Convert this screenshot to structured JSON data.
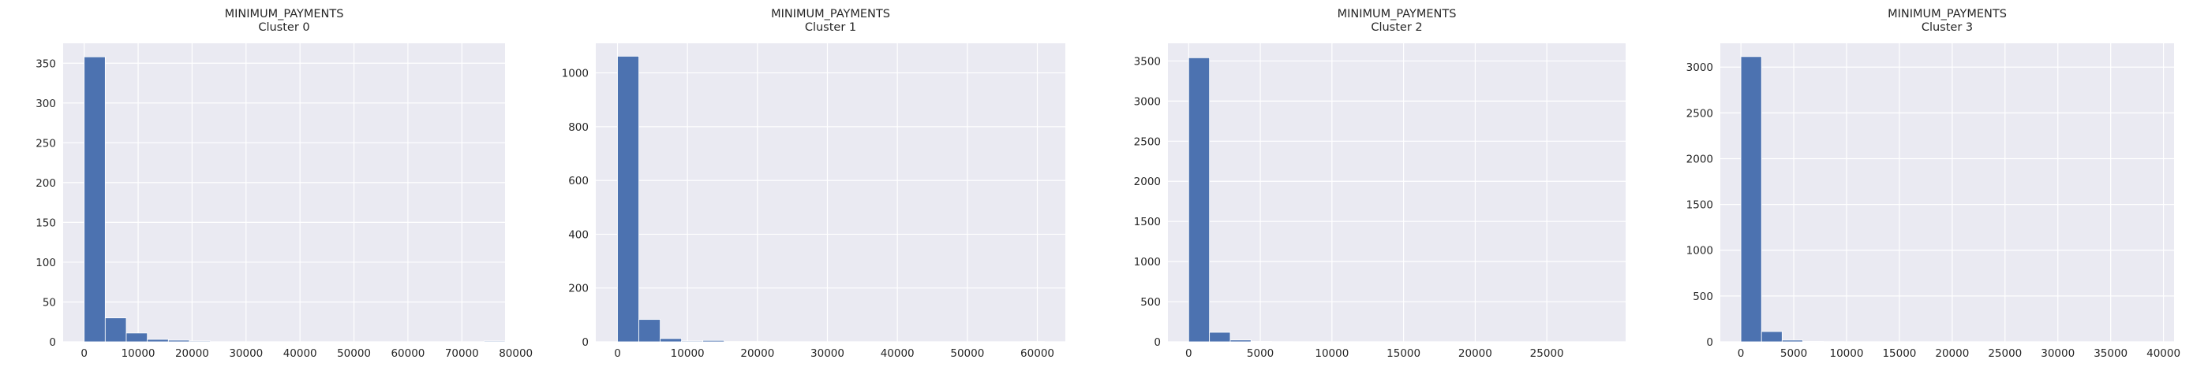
{
  "colors": {
    "background": "#eaeaf2",
    "bar": "#4c72b0",
    "grid": "#ffffff",
    "text": "#262626",
    "page": "#ffffff"
  },
  "chart_data": [
    {
      "type": "bar",
      "title": "MINIMUM_PAYMENTS\nCluster 0",
      "xlabel": "",
      "ylabel": "",
      "grid": true,
      "xlim": [
        -3900,
        78000
      ],
      "ylim": [
        0,
        375
      ],
      "xticks": [
        0,
        10000,
        20000,
        30000,
        40000,
        50000,
        60000,
        70000,
        80000
      ],
      "xtick_labels": [
        "0",
        "10000",
        "20000",
        "30000",
        "40000",
        "50000",
        "60000",
        "70000",
        "80000"
      ],
      "yticks": [
        0,
        50,
        100,
        150,
        200,
        250,
        300,
        350
      ],
      "ytick_labels": [
        "0",
        "50",
        "100",
        "150",
        "200",
        "250",
        "300",
        "350"
      ],
      "bin_edges": [
        0,
        3900,
        7800,
        11700,
        15600,
        19500,
        23400,
        27300,
        31200,
        35100,
        39000,
        42900,
        46800,
        50700,
        54600,
        58500,
        62400,
        66300,
        70200,
        74100,
        78000
      ],
      "values": [
        358,
        30,
        11,
        3,
        2,
        1,
        0,
        0,
        0,
        0,
        0,
        0,
        0,
        0,
        0,
        0,
        0,
        0,
        0,
        1
      ]
    },
    {
      "type": "bar",
      "title": "MINIMUM_PAYMENTS\nCluster 1",
      "xlabel": "",
      "ylabel": "",
      "grid": true,
      "xlim": [
        -3100,
        64000
      ],
      "ylim": [
        0,
        1110
      ],
      "xticks": [
        0,
        10000,
        20000,
        30000,
        40000,
        50000,
        60000
      ],
      "xtick_labels": [
        "0",
        "10000",
        "20000",
        "30000",
        "40000",
        "50000",
        "60000"
      ],
      "yticks": [
        0,
        200,
        400,
        600,
        800,
        1000
      ],
      "ytick_labels": [
        "0",
        "200",
        "400",
        "600",
        "800",
        "1000"
      ],
      "bin_edges": [
        0,
        3050,
        6100,
        9150,
        12200,
        15250,
        18300,
        21350,
        24400,
        27450,
        30500,
        33550,
        36600,
        39650,
        42700,
        45750,
        48800,
        51850,
        54900,
        57950,
        61000
      ],
      "values": [
        1062,
        83,
        12,
        3,
        5,
        1,
        1,
        0,
        0,
        0,
        0,
        0,
        0,
        0,
        0,
        0,
        0,
        0,
        0,
        1
      ]
    },
    {
      "type": "bar",
      "title": "MINIMUM_PAYMENTS\nCluster 2",
      "xlabel": "",
      "ylabel": "",
      "grid": true,
      "xlim": [
        -1450,
        30500
      ],
      "ylim": [
        0,
        3720
      ],
      "xticks": [
        0,
        5000,
        10000,
        15000,
        20000,
        25000
      ],
      "xtick_labels": [
        "0",
        "5000",
        "10000",
        "15000",
        "20000",
        "25000"
      ],
      "yticks": [
        0,
        500,
        1000,
        1500,
        2000,
        2500,
        3000,
        3500
      ],
      "ytick_labels": [
        "0",
        "500",
        "1000",
        "1500",
        "2000",
        "2500",
        "3000",
        "3500"
      ],
      "bin_edges": [
        0,
        1450,
        2900,
        4350,
        5800,
        7250,
        8700,
        10150,
        11600,
        13050,
        14500,
        15950,
        17400,
        18850,
        20300,
        21750,
        23200,
        24650,
        26100,
        27550,
        29000
      ],
      "values": [
        3540,
        118,
        22,
        5,
        2,
        1,
        0,
        0,
        0,
        0,
        0,
        0,
        0,
        0,
        0,
        0,
        0,
        0,
        0,
        1
      ]
    },
    {
      "type": "bar",
      "title": "MINIMUM_PAYMENTS\nCluster 3",
      "xlabel": "",
      "ylabel": "",
      "grid": true,
      "xlim": [
        -1950,
        41000
      ],
      "ylim": [
        0,
        3260
      ],
      "xticks": [
        0,
        5000,
        10000,
        15000,
        20000,
        25000,
        30000,
        35000,
        40000
      ],
      "xtick_labels": [
        "0",
        "5000",
        "10000",
        "15000",
        "20000",
        "25000",
        "30000",
        "35000",
        "40000"
      ],
      "yticks": [
        0,
        500,
        1000,
        1500,
        2000,
        2500,
        3000
      ],
      "ytick_labels": [
        "0",
        "500",
        "1000",
        "1500",
        "2000",
        "2500",
        "3000"
      ],
      "bin_edges": [
        0,
        1950,
        3900,
        5850,
        7800,
        9750,
        11700,
        13650,
        15600,
        17550,
        19500,
        21450,
        23400,
        25350,
        27300,
        29250,
        31200,
        33150,
        35100,
        37050,
        39000
      ],
      "values": [
        3115,
        112,
        18,
        5,
        2,
        1,
        0,
        0,
        0,
        0,
        0,
        0,
        0,
        0,
        0,
        0,
        0,
        0,
        0,
        1
      ]
    }
  ]
}
